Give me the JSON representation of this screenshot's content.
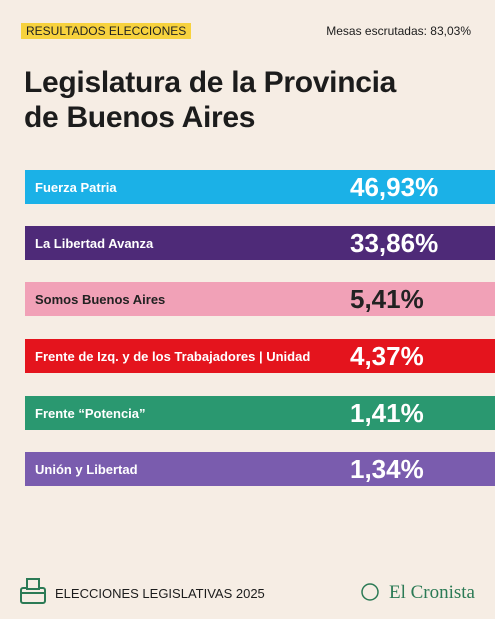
{
  "header": {
    "tag": "RESULTADOS ELECCIONES",
    "status": "Mesas escrutadas: 83,03%",
    "title_line1": "Legislatura de la Provincia",
    "title_line2": "de Buenos Aires"
  },
  "results": [
    {
      "party": "Fuerza Patria",
      "percent": "46,93%",
      "color": "#1bb1e7",
      "text_color": "#ffffff"
    },
    {
      "party": "La Libertad Avanza",
      "percent": "33,86%",
      "color": "#4e2a78",
      "text_color": "#ffffff"
    },
    {
      "party": "Somos Buenos Aires",
      "percent": "5,41%",
      "color": "#f1a1b7",
      "text_color": "#222222"
    },
    {
      "party": "Frente de Izq. y de los Trabajadores | Unidad",
      "percent": "4,37%",
      "color": "#e4141d",
      "text_color": "#ffffff"
    },
    {
      "party": "Frente “Potencia”",
      "percent": "1,41%",
      "color": "#2a9870",
      "text_color": "#ffffff"
    },
    {
      "party": "Unión y Libertad",
      "percent": "1,34%",
      "color": "#7a5cae",
      "text_color": "#ffffff"
    }
  ],
  "footer": {
    "label": "ELECCIONES LEGISLATIVAS 2025",
    "brand": "El Cronista"
  }
}
